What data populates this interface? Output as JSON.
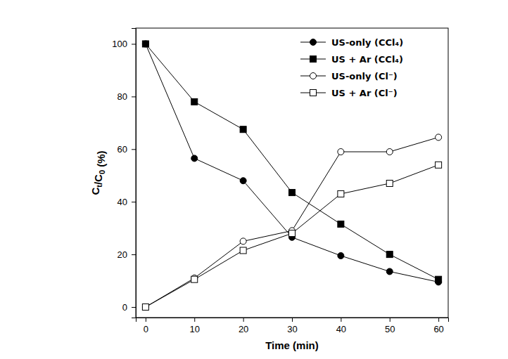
{
  "chart_data": {
    "type": "line",
    "x_label": "Time (min)",
    "y_label": "Ct/C0 (%)",
    "x": [
      0,
      10,
      20,
      30,
      40,
      50,
      60
    ],
    "xlim": [
      -2,
      62
    ],
    "xticks": [
      0,
      10,
      20,
      30,
      40,
      50,
      60
    ],
    "ylim": [
      -4,
      106
    ],
    "yticks": [
      0,
      20,
      40,
      60,
      80,
      100
    ],
    "legend": "upper right",
    "series": [
      {
        "name": "US-only (CCl₄)",
        "color": "#000000",
        "marker": "circle",
        "line_style": "solid",
        "values": [
          100,
          56.5,
          48,
          26.5,
          19.5,
          13.5,
          9.5
        ]
      },
      {
        "name": "US + Ar (CCl₄)",
        "color": "#000000",
        "marker": "square",
        "line_style": "solid",
        "values": [
          100,
          78,
          67.5,
          43.5,
          31.5,
          20,
          10.5
        ]
      },
      {
        "name": "US-only (Cl⁻)",
        "color": "#000000",
        "marker": "circle-open",
        "line_style": "solid",
        "values": [
          0,
          11,
          25,
          29,
          59,
          59,
          64.5
        ]
      },
      {
        "name": "US + Ar (Cl⁻)",
        "color": "#000000",
        "marker": "square-open",
        "line_style": "solid",
        "values": [
          0,
          10.5,
          21.5,
          28,
          43,
          47,
          54
        ]
      }
    ]
  }
}
